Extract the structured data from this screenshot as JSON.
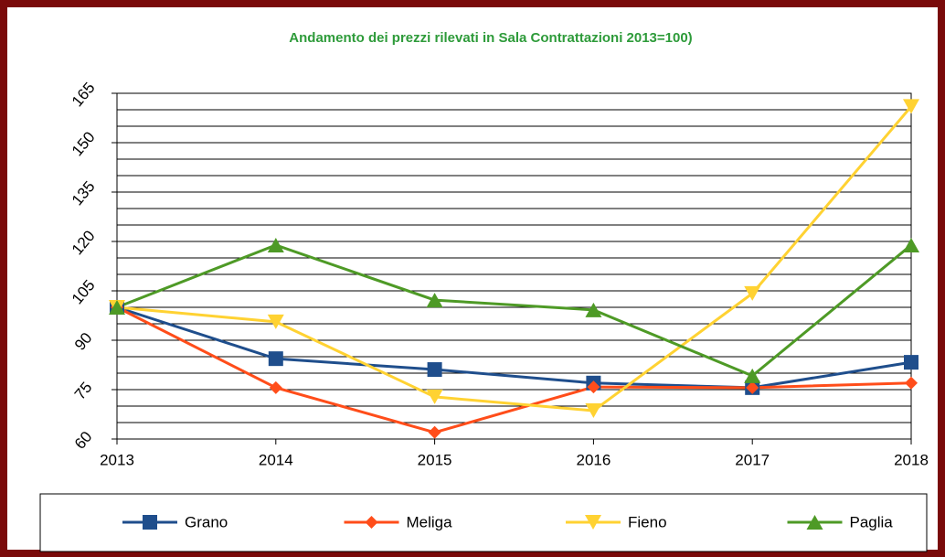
{
  "chart_data": {
    "type": "line",
    "title": "Andamento dei prezzi rilevati in Sala Contrattazioni 2013=100)",
    "categories": [
      "2013",
      "2014",
      "2015",
      "2016",
      "2017",
      "2018"
    ],
    "series": [
      {
        "name": "Grano",
        "color": "#1f4e8c",
        "marker": "square",
        "values": [
          100,
          84.4,
          81.1,
          77,
          75.6,
          83.3
        ]
      },
      {
        "name": "Meliga",
        "color": "#ff4d1a",
        "marker": "diamond",
        "values": [
          100,
          75.6,
          62,
          75.8,
          75.6,
          77
        ]
      },
      {
        "name": "Fieno",
        "color": "#ffd232",
        "marker": "triangle-down",
        "values": [
          100,
          95.6,
          72.8,
          68.6,
          104.2,
          161
        ]
      },
      {
        "name": "Paglia",
        "color": "#4e9a26",
        "marker": "triangle-up",
        "values": [
          100,
          118.9,
          102.2,
          99.2,
          79.2,
          118.9
        ]
      }
    ],
    "ylim": [
      60,
      165
    ],
    "yticks": [
      60,
      75,
      90,
      105,
      120,
      135,
      150,
      165
    ],
    "minor_yticks": [
      60,
      65,
      70,
      75,
      80,
      85,
      90,
      95,
      100,
      105,
      110,
      115,
      120,
      125,
      130,
      135,
      140,
      145,
      150,
      155,
      160,
      165
    ],
    "grid": true,
    "legend": "bottom"
  }
}
